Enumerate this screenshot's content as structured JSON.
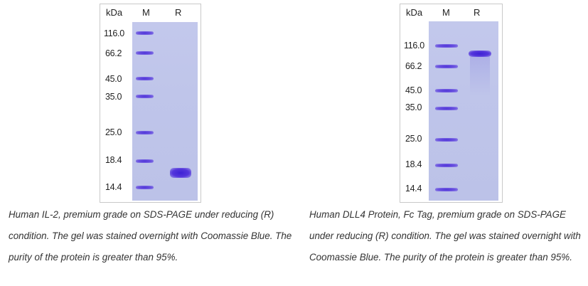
{
  "left_figure": {
    "kda_label": "kDa",
    "lane_m_label": "M",
    "lane_r_label": "R",
    "markers": [
      "116.0",
      "66.2",
      "45.0",
      "35.0",
      "25.0",
      "18.4",
      "14.4"
    ],
    "caption": "Human IL-2, premium grade on SDS-PAGE under reducing (R) condition. The gel was stained overnight with Coomassie Blue. The purity of the protein is greater than 95%."
  },
  "right_figure": {
    "kda_label": "kDa",
    "lane_m_label": "M",
    "lane_r_label": "R",
    "markers": [
      "116.0",
      "66.2",
      "45.0",
      "35.0",
      "25.0",
      "18.4",
      "14.4"
    ],
    "caption": "Human DLL4 Protein, Fc Tag, premium grade on SDS-PAGE under reducing (R) condition. The gel was stained overnight with Coomassie Blue. The purity of the protein is greater than 95%."
  },
  "colors": {
    "gel_background": "#c0c6ea",
    "band_color": "#4a30d6",
    "caption_text": "#333333"
  }
}
